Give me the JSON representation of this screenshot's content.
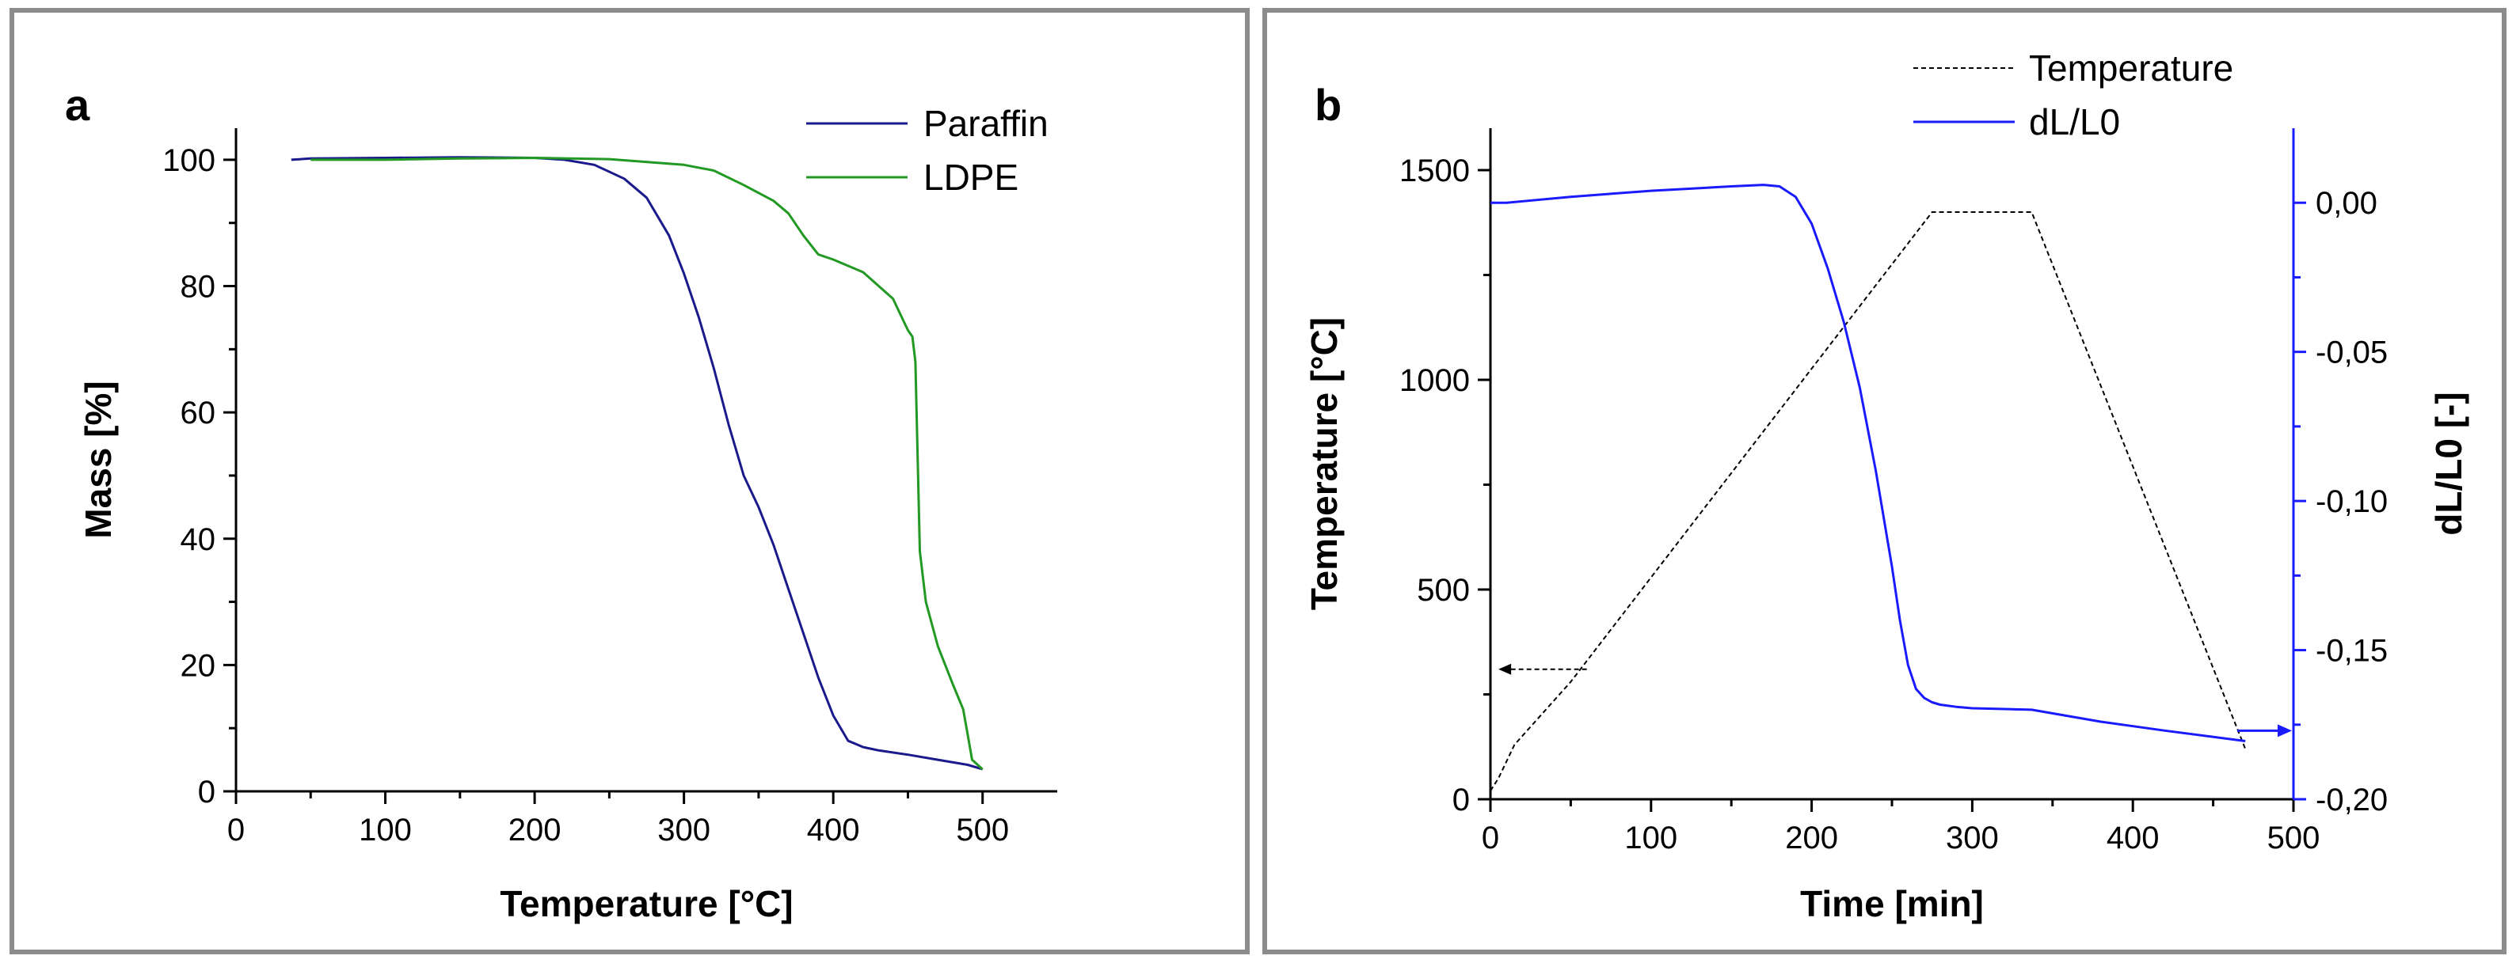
{
  "chart_data": [
    {
      "type": "line",
      "panel_label": "a",
      "xlabel": "Temperature [°C]",
      "ylabel": "Mass [%]",
      "xlim": [
        0,
        550
      ],
      "ylim": [
        0,
        105
      ],
      "xticks": [
        0,
        100,
        200,
        300,
        400,
        500
      ],
      "yticks": [
        0,
        20,
        40,
        60,
        80,
        100
      ],
      "legend_position": "top-right",
      "series": [
        {
          "name": "Paraffin",
          "color": "#1a1a8c",
          "x": [
            37,
            50,
            100,
            150,
            200,
            220,
            240,
            260,
            275,
            290,
            300,
            310,
            320,
            330,
            340,
            350,
            360,
            370,
            380,
            390,
            400,
            410,
            415,
            420,
            430,
            450,
            470,
            490,
            500
          ],
          "y": [
            100,
            100.2,
            100.3,
            100.4,
            100.3,
            100,
            99.2,
            97,
            94,
            88,
            82,
            75,
            67,
            58,
            50,
            45,
            39,
            32,
            25,
            18,
            12,
            8,
            7.5,
            7,
            6.5,
            5.8,
            5,
            4.2,
            3.5
          ]
        },
        {
          "name": "LDPE",
          "color": "#229922",
          "x": [
            50,
            100,
            150,
            200,
            250,
            300,
            320,
            340,
            360,
            370,
            380,
            390,
            400,
            420,
            440,
            450,
            453,
            455,
            458,
            462,
            470,
            480,
            487,
            490,
            493,
            500
          ],
          "y": [
            100,
            100,
            100.2,
            100.3,
            100.1,
            99.2,
            98.3,
            96,
            93.5,
            91.5,
            88,
            85,
            84.2,
            82.2,
            78,
            73,
            72,
            68,
            38,
            30,
            23,
            17,
            13,
            9,
            5,
            3.5
          ]
        }
      ]
    },
    {
      "type": "line",
      "panel_label": "b",
      "xlabel": "Time [min]",
      "ylabel": "Temperature [°C]",
      "y2label": "dL/L0 [-]",
      "xlim": [
        0,
        500
      ],
      "ylim": [
        0,
        1600
      ],
      "y2lim": [
        -0.2,
        0.025
      ],
      "xticks": [
        0,
        100,
        200,
        300,
        400,
        500
      ],
      "yticks": [
        0,
        500,
        1000,
        1500
      ],
      "y2ticks": [
        0.0,
        -0.05,
        -0.1,
        -0.15,
        -0.2
      ],
      "y2ticklabels": [
        "0,00",
        "-0,05",
        "-0,10",
        "-0,15",
        "-0,20"
      ],
      "legend_position": "top-right",
      "series": [
        {
          "name": "Temperature",
          "axis": "left",
          "color": "#000000",
          "style": "dashed",
          "x": [
            0,
            5,
            15,
            50,
            275,
            337,
            470
          ],
          "y": [
            20,
            50,
            130,
            280,
            1400,
            1400,
            120
          ]
        },
        {
          "name": "dL/L0",
          "axis": "right",
          "color": "#1a1aff",
          "style": "solid",
          "x": [
            0,
            10,
            50,
            100,
            150,
            170,
            180,
            190,
            200,
            210,
            220,
            230,
            240,
            250,
            255,
            260,
            265,
            270,
            275,
            280,
            290,
            300,
            337,
            380,
            420,
            470
          ],
          "y": [
            0.0,
            0.0,
            0.002,
            0.004,
            0.0055,
            0.006,
            0.0055,
            0.002,
            -0.007,
            -0.022,
            -0.04,
            -0.062,
            -0.09,
            -0.122,
            -0.14,
            -0.155,
            -0.163,
            -0.166,
            -0.1675,
            -0.1683,
            -0.169,
            -0.1695,
            -0.17,
            -0.174,
            -0.177,
            -0.1805
          ]
        }
      ],
      "annotations": [
        {
          "type": "arrow",
          "points_to": "left-axis",
          "color": "#000000",
          "style": "dashed",
          "x_from": 60,
          "x_to": 5,
          "y": 310
        },
        {
          "type": "arrow",
          "points_to": "right-axis",
          "color": "#1a1aff",
          "style": "solid",
          "x_from": 465,
          "x_to": 500,
          "y2": -0.177
        }
      ]
    }
  ]
}
